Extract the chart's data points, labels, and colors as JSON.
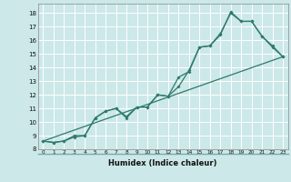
{
  "title": "",
  "xlabel": "Humidex (Indice chaleur)",
  "background_color": "#cce8e8",
  "plot_bg_color": "#cce8e8",
  "grid_color": "#ffffff",
  "line_color": "#2d7a6a",
  "separator_color": "#7aaaaa",
  "xlim": [
    -0.5,
    23.5
  ],
  "ylim": [
    8,
    18.7
  ],
  "xticks": [
    0,
    1,
    2,
    3,
    4,
    5,
    6,
    7,
    8,
    9,
    10,
    11,
    12,
    13,
    14,
    15,
    16,
    17,
    18,
    19,
    20,
    21,
    22,
    23
  ],
  "yticks": [
    8,
    9,
    10,
    11,
    12,
    13,
    14,
    15,
    16,
    17,
    18
  ],
  "series1_x": [
    0,
    1,
    2,
    3,
    4,
    5,
    6,
    7,
    8,
    9,
    10,
    11,
    12,
    13,
    14,
    15,
    16,
    17,
    18,
    19,
    20,
    21,
    22,
    23
  ],
  "series1_y": [
    8.6,
    8.5,
    8.6,
    9.0,
    9.0,
    10.3,
    10.8,
    11.0,
    10.4,
    11.1,
    11.1,
    12.0,
    11.9,
    13.3,
    13.7,
    15.5,
    15.6,
    16.4,
    18.1,
    17.4,
    17.4,
    16.3,
    15.6,
    14.8
  ],
  "series2_x": [
    0,
    1,
    2,
    3,
    4,
    5,
    6,
    7,
    8,
    9,
    10,
    11,
    12,
    13,
    14,
    15,
    16,
    17,
    18,
    19,
    20,
    21,
    22,
    23
  ],
  "series2_y": [
    8.6,
    8.5,
    8.6,
    8.9,
    9.0,
    10.3,
    10.8,
    11.0,
    10.3,
    11.1,
    11.1,
    12.0,
    11.9,
    12.6,
    13.8,
    15.5,
    15.6,
    16.5,
    18.0,
    17.4,
    17.4,
    16.3,
    15.5,
    14.8
  ],
  "series3_x": [
    0,
    23
  ],
  "series3_y": [
    8.6,
    14.8
  ]
}
